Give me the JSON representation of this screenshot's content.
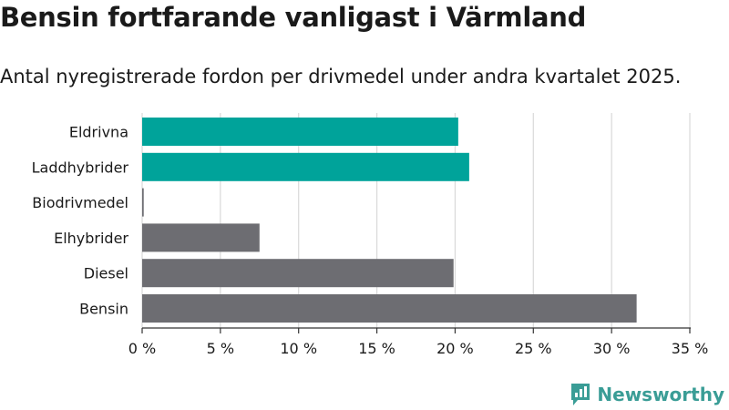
{
  "title": "Bensin fortfarande vanligast i Värmland",
  "subtitle": "Antal nyregistrerade fordon per drivmedel under andra kvartalet 2025.",
  "logo": {
    "name": "Newsworthy"
  },
  "colors": {
    "electric": "#00a39a",
    "other": "#6d6d72",
    "grid": "#d9d9d9",
    "axis": "#333333"
  },
  "chart_data": {
    "type": "bar",
    "orientation": "horizontal",
    "title": "Bensin fortfarande vanligast i Värmland",
    "subtitle": "Antal nyregistrerade fordon per drivmedel under andra kvartalet 2025.",
    "categories": [
      "Eldrivna",
      "Laddhybrider",
      "Biodrivmedel",
      "Elhybrider",
      "Diesel",
      "Bensin"
    ],
    "values": [
      20.2,
      20.9,
      0.1,
      7.5,
      19.9,
      31.6
    ],
    "bar_colors": [
      "#00a39a",
      "#00a39a",
      "#6d6d72",
      "#6d6d72",
      "#6d6d72",
      "#6d6d72"
    ],
    "xlim": [
      0,
      35
    ],
    "x_ticks": [
      0,
      5,
      10,
      15,
      20,
      25,
      30,
      35
    ],
    "x_tick_labels": [
      "0 %",
      "5 %",
      "10 %",
      "15 %",
      "20 %",
      "25 %",
      "30 %",
      "35 %"
    ],
    "xlabel": "",
    "ylabel": "",
    "grid": true
  }
}
